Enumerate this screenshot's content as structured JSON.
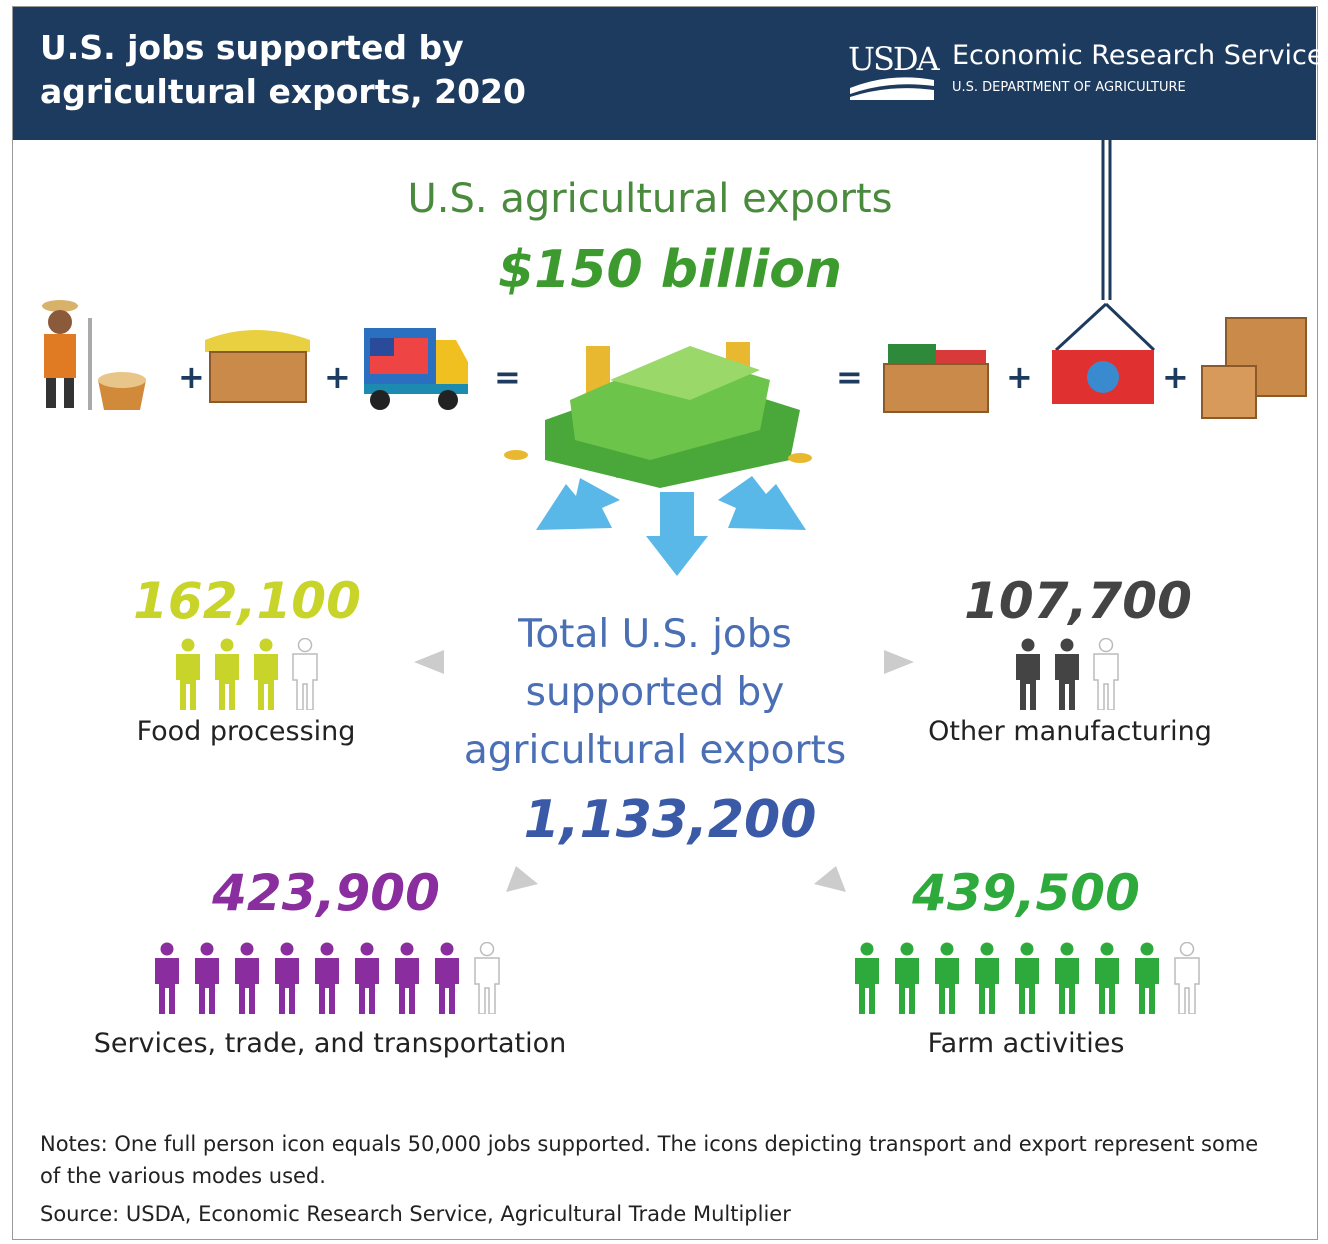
{
  "header": {
    "title": "U.S. jobs supported by agricultural exports, 2020",
    "logo": "USDA",
    "agency": "Economic Research Service",
    "department": "U.S. DEPARTMENT OF AGRICULTURE"
  },
  "exports": {
    "label": "U.S. agricultural exports",
    "value": "$150 billion"
  },
  "total": {
    "label": "Total U.S. jobs supported by agricultural exports",
    "value": "1,133,200"
  },
  "sectors": [
    {
      "value": "162,100",
      "label": "Food processing"
    },
    {
      "value": "107,700",
      "label": "Other manufacturing"
    },
    {
      "value": "423,900",
      "label": "Services, trade, and transportation"
    },
    {
      "value": "439,500",
      "label": "Farm activities"
    }
  ],
  "notes": "Notes: One full person icon equals 50,000 jobs supported. The icons depicting transport and export represent some of the various modes used.",
  "source": "Source: USDA, Economic Research Service, Agricultural Trade Multiplier"
}
